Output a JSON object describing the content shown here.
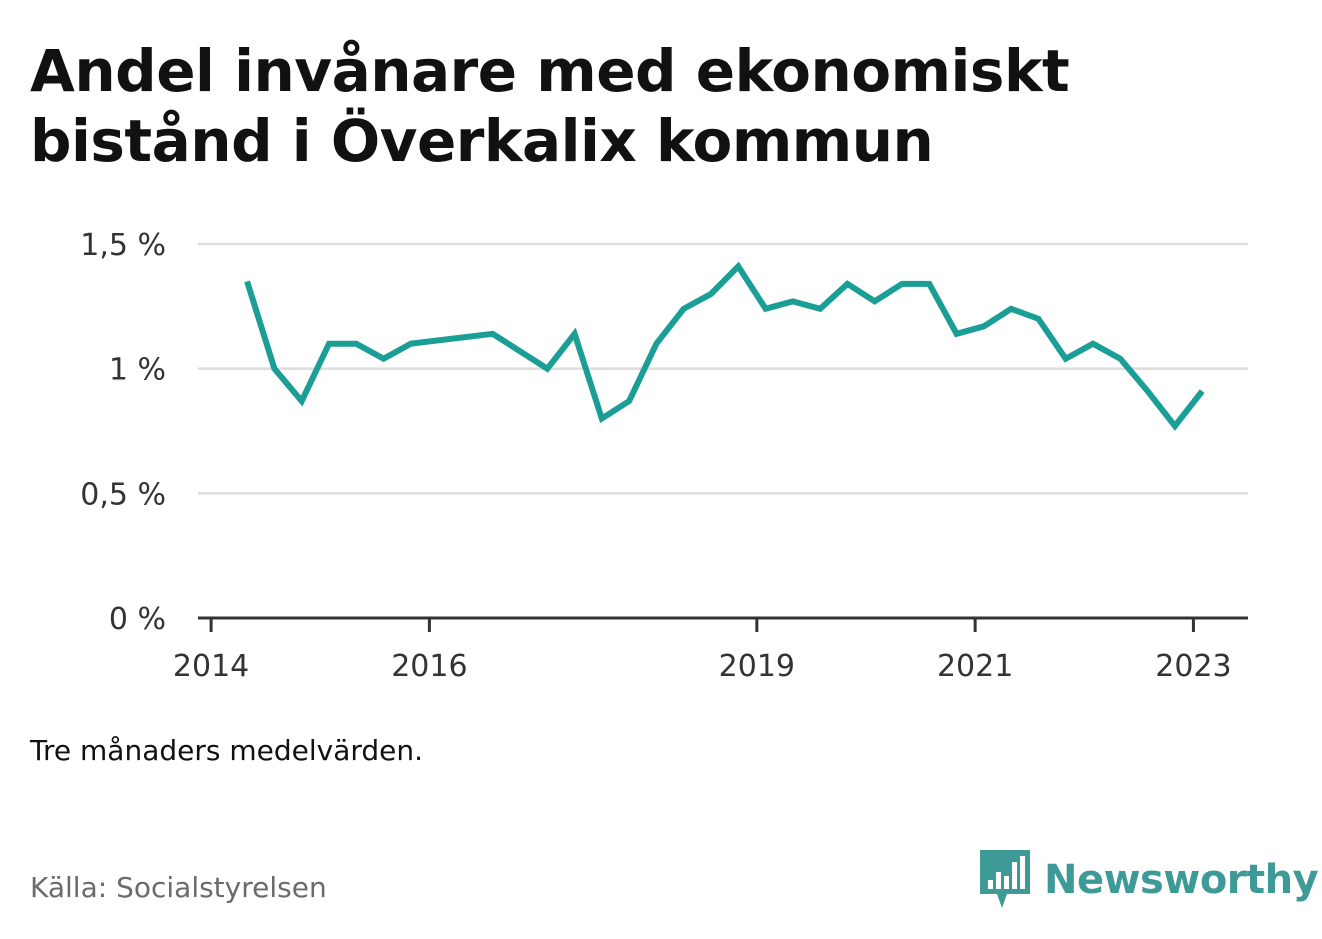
{
  "title": {
    "line1": "Andel invånare med ekonomiskt",
    "line2": "bistånd i Överkalix kommun"
  },
  "note": "Tre månaders medelvärden.",
  "source": "Källa: Socialstyrelsen",
  "brand": {
    "name": "Newsworthy",
    "logo_icon": "bar-chart-speech-bubble-icon",
    "color": "#3e9a97"
  },
  "chart_data": {
    "type": "line",
    "series": [
      {
        "color": "#1a9e96",
        "points": [
          {
            "x": 2014.33,
            "y": 1.35
          },
          {
            "x": 2014.58,
            "y": 1.0
          },
          {
            "x": 2014.83,
            "y": 0.87
          },
          {
            "x": 2015.08,
            "y": 1.1
          },
          {
            "x": 2015.33,
            "y": 1.1
          },
          {
            "x": 2015.58,
            "y": 1.04
          },
          {
            "x": 2015.83,
            "y": 1.1
          },
          {
            "x": 2016.58,
            "y": 1.14
          },
          {
            "x": 2017.08,
            "y": 1.0
          },
          {
            "x": 2017.33,
            "y": 1.14
          },
          {
            "x": 2017.58,
            "y": 0.8
          },
          {
            "x": 2017.83,
            "y": 0.87
          },
          {
            "x": 2018.08,
            "y": 1.1
          },
          {
            "x": 2018.33,
            "y": 1.24
          },
          {
            "x": 2018.58,
            "y": 1.3
          },
          {
            "x": 2018.83,
            "y": 1.41
          },
          {
            "x": 2019.08,
            "y": 1.24
          },
          {
            "x": 2019.33,
            "y": 1.27
          },
          {
            "x": 2019.58,
            "y": 1.24
          },
          {
            "x": 2019.83,
            "y": 1.34
          },
          {
            "x": 2020.08,
            "y": 1.27
          },
          {
            "x": 2020.33,
            "y": 1.34
          },
          {
            "x": 2020.58,
            "y": 1.34
          },
          {
            "x": 2020.83,
            "y": 1.14
          },
          {
            "x": 2021.08,
            "y": 1.17
          },
          {
            "x": 2021.33,
            "y": 1.24
          },
          {
            "x": 2021.58,
            "y": 1.2
          },
          {
            "x": 2021.83,
            "y": 1.04
          },
          {
            "x": 2022.08,
            "y": 1.1
          },
          {
            "x": 2022.33,
            "y": 1.04
          },
          {
            "x": 2022.58,
            "y": 0.91
          },
          {
            "x": 2022.83,
            "y": 0.77
          },
          {
            "x": 2023.08,
            "y": 0.91
          }
        ]
      }
    ],
    "y_ticks": [
      {
        "value": 0,
        "label": "0 %"
      },
      {
        "value": 0.5,
        "label": "0,5 %"
      },
      {
        "value": 1,
        "label": "1 %"
      },
      {
        "value": 1.5,
        "label": "1,5 %"
      }
    ],
    "x_ticks": [
      {
        "value": 2014,
        "label": "2014"
      },
      {
        "value": 2016,
        "label": "2016"
      },
      {
        "value": 2019,
        "label": "2019"
      },
      {
        "value": 2021,
        "label": "2021"
      },
      {
        "value": 2023,
        "label": "2023"
      }
    ],
    "ylim": [
      0,
      1.5
    ],
    "xlim": [
      2013.88,
      2023.5
    ],
    "grid": true,
    "axis_color": "#333333",
    "grid_color": "#dddddd"
  }
}
